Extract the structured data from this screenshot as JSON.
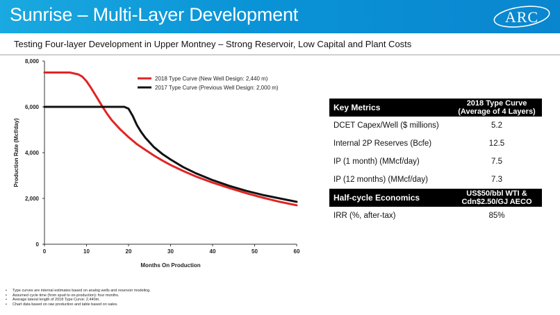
{
  "header": {
    "title": "Sunrise – Multi-Layer Development",
    "logo_text": "ARC"
  },
  "subtitle": "Testing Four-layer Development in Upper Montney – Strong Reservoir, Low Capital and Plant Costs",
  "colors": {
    "header_blue": "#0a93d6",
    "series_2018": "#e02424",
    "series_2017": "#111111"
  },
  "chart_data": {
    "type": "line",
    "xlabel": "Months On Production",
    "ylabel": "Production Rate (Mcf/day)",
    "xlim": [
      0,
      60
    ],
    "ylim": [
      0,
      8000
    ],
    "x_ticks": [
      "0",
      "10",
      "20",
      "30",
      "40",
      "50",
      "60"
    ],
    "y_ticks": [
      "0",
      "2,000",
      "4,000",
      "6,000",
      "8,000"
    ],
    "grid": false,
    "legend_position": "top-right",
    "series": [
      {
        "name": "2018 Type Curve (New Well Design: 2,440 m)",
        "color": "#e02424",
        "x": [
          0,
          2,
          4,
          6,
          8,
          9,
          10,
          11,
          12,
          13,
          14,
          15,
          16,
          18,
          20,
          22,
          24,
          26,
          28,
          30,
          33,
          36,
          40,
          44,
          48,
          52,
          56,
          60
        ],
        "y": [
          7500,
          7500,
          7500,
          7500,
          7420,
          7320,
          7120,
          6850,
          6550,
          6250,
          5950,
          5670,
          5420,
          5020,
          4680,
          4370,
          4120,
          3880,
          3660,
          3460,
          3200,
          2960,
          2690,
          2450,
          2230,
          2030,
          1850,
          1700
        ]
      },
      {
        "name": "2017 Type Curve (Previous Well Design: 2,000 m)",
        "color": "#111111",
        "x": [
          0,
          5,
          10,
          15,
          18,
          19,
          20,
          21,
          22,
          23,
          24,
          26,
          28,
          30,
          33,
          36,
          40,
          44,
          48,
          52,
          56,
          60
        ],
        "y": [
          6000,
          6000,
          6000,
          6000,
          6000,
          6000,
          5920,
          5600,
          5200,
          4900,
          4650,
          4250,
          3950,
          3700,
          3370,
          3100,
          2800,
          2550,
          2330,
          2150,
          2000,
          1850
        ]
      }
    ]
  },
  "table": {
    "header1": {
      "label": "Key Metrics",
      "value": "2018 Type Curve (Average of 4 Layers)"
    },
    "rows1": [
      {
        "label": "DCET Capex/Well ($ millions)",
        "value": "5.2"
      },
      {
        "label": "Internal 2P Reserves (Bcfe)",
        "value": "12.5"
      },
      {
        "label": "IP (1 month) (MMcf/day)",
        "value": "7.5"
      },
      {
        "label": "IP (12 months) (MMcf/day)",
        "value": "7.3"
      }
    ],
    "header2": {
      "label": "Half-cycle Economics",
      "value": "US$50/bbl WTI & Cdn$2.50/GJ AECO"
    },
    "rows2": [
      {
        "label": "IRR (%, after-tax)",
        "value": "85%"
      }
    ]
  },
  "notes": [
    "Type curves are internal estimates based on analog wells and reservoir modeling.",
    "Assumed cycle time (from spud to on-production): four months.",
    "Average lateral length of 2018 Type Curve: 2,440m.",
    "Chart data based on raw production and table based on sales."
  ]
}
